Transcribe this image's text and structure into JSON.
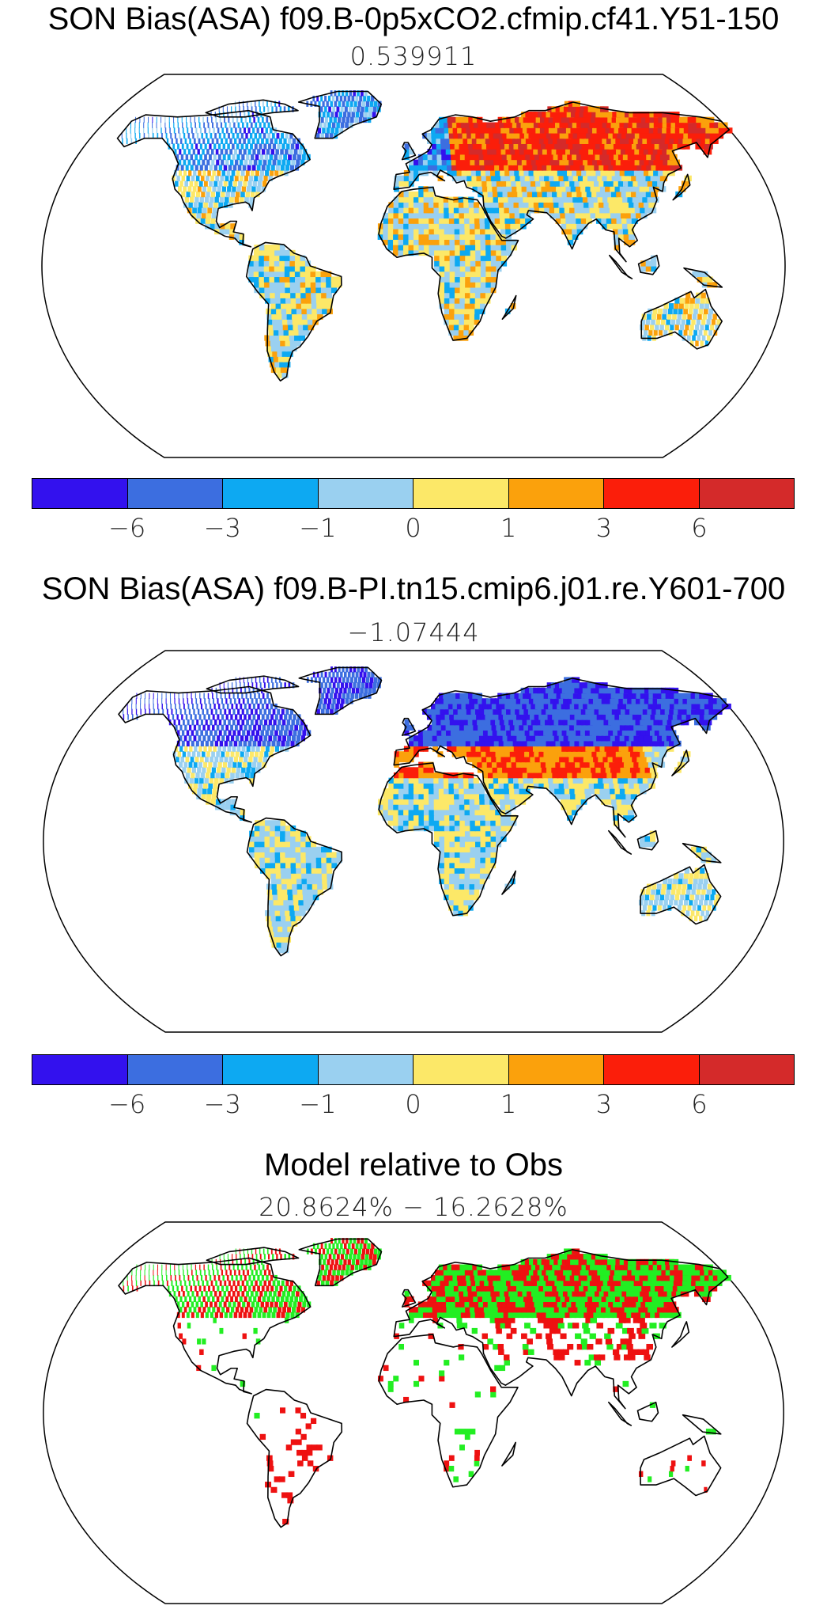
{
  "panels": [
    {
      "title": "SON Bias(ASA) f09.B-0p5xCO2.cfmip.cf41.Y51-150",
      "subtitle": "0.539911",
      "dominant": "mixed"
    },
    {
      "title": "SON Bias(ASA) f09.B-PI.tn15.cmip6.j01.re.Y601-700",
      "subtitle": "−1.07444",
      "dominant": "cold"
    },
    {
      "title": "Model relative to Obs",
      "subtitle": "20.8624% − 16.2628%",
      "dominant": "binary"
    }
  ],
  "colorbar": {
    "colors": [
      "#3311ee",
      "#3c6ee0",
      "#0da9f2",
      "#9ad0f0",
      "#fce868",
      "#fba10c",
      "#fb1e0a",
      "#d42a2a"
    ],
    "tick_labels": [
      "−6",
      "−3",
      "−1",
      "0",
      "1",
      "3",
      "6"
    ]
  },
  "binary_colors": {
    "better": "#22ee22",
    "worse": "#ee1111"
  }
}
